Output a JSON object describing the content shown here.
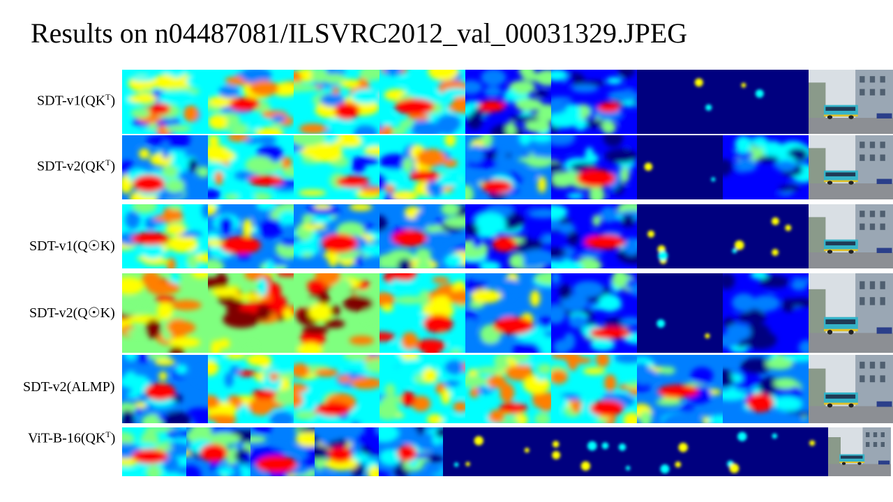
{
  "title": "Results on n04487081/ILSVRC2012_val_00031329.JPEG",
  "rows": [
    {
      "label_main": "SDT-v1(QK",
      "label_sup": "T",
      "label_tail": ")",
      "panels": 8,
      "style": "v1qk",
      "levels": [
        0.45,
        0.5,
        0.5,
        0.5,
        0.25,
        0.25,
        0.05,
        0.05
      ]
    },
    {
      "label_main": "SDT-v2(QK",
      "label_sup": "T",
      "label_tail": ")",
      "panels": 8,
      "style": "v2qk",
      "levels": [
        0.35,
        0.45,
        0.45,
        0.45,
        0.3,
        0.25,
        0.05,
        0.2
      ]
    },
    {
      "label_main": "SDT-v1(Q☉K)",
      "label_sup": "",
      "label_tail": "",
      "panels": 8,
      "style": "v1qok",
      "levels": [
        0.5,
        0.35,
        0.35,
        0.3,
        0.25,
        0.25,
        0.03,
        0.03
      ]
    },
    {
      "label_main": "SDT-v2(Q☉K)",
      "label_sup": "",
      "label_tail": "",
      "panels": 8,
      "style": "v2qok",
      "levels": [
        0.7,
        0.7,
        0.75,
        0.6,
        0.3,
        0.25,
        0.08,
        0.15
      ]
    },
    {
      "label_main": "SDT-v2(ALMP)",
      "label_sup": "",
      "label_tail": "",
      "panels": 8,
      "style": "almp",
      "levels": [
        0.3,
        0.55,
        0.55,
        0.5,
        0.55,
        0.5,
        0.35,
        0.3
      ]
    },
    {
      "label_main": "ViT-B-16(QK",
      "label_sup": "T",
      "label_tail": ")",
      "panels": 11,
      "style": "vit",
      "levels": [
        0.45,
        0.3,
        0.3,
        0.3,
        0.3,
        0.05,
        0.05,
        0.05,
        0.05,
        0.05,
        0.05
      ]
    }
  ],
  "colors": {
    "jet": [
      "#00007f",
      "#0000ff",
      "#007fff",
      "#00ffff",
      "#7fff7f",
      "#ffff00",
      "#ff7f00",
      "#ff0000",
      "#7f0000"
    ]
  }
}
